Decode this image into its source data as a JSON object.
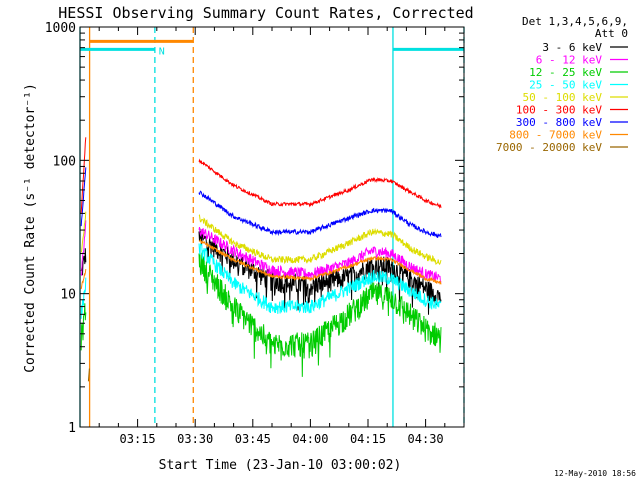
{
  "chart_data": {
    "type": "line",
    "title": "HESSI Observing Summary Count Rates, Corrected",
    "xlabel": "Start Time (23-Jan-10 03:00:02)",
    "ylabel": "Corrected Count Rate (s⁻¹ detector⁻¹)",
    "ylog": true,
    "ylim": [
      1,
      1000
    ],
    "xlim_minutes": [
      0,
      100
    ],
    "x_ticks": [
      {
        "label": "03:15",
        "minute": 15
      },
      {
        "label": "03:30",
        "minute": 30
      },
      {
        "label": "03:45",
        "minute": 45
      },
      {
        "label": "04:00",
        "minute": 60
      },
      {
        "label": "04:15",
        "minute": 75
      },
      {
        "label": "04:30",
        "minute": 90
      }
    ],
    "y_ticks": [
      {
        "label": "1",
        "value": 1
      },
      {
        "label": "10",
        "value": 10
      },
      {
        "label": "100",
        "value": 100
      },
      {
        "label": "1000",
        "value": 1000
      }
    ],
    "legend_position": "right",
    "legend_header": [
      "Det 1,3,4,5,6,9,",
      "Att 0"
    ],
    "gaps_minutes": [
      [
        2,
        31
      ]
    ],
    "series": [
      {
        "name": "3 - 6 keV",
        "color": "#000000",
        "noise": 0.18,
        "x": [
          0.3,
          1.5,
          2.0,
          31.0,
          40,
          50,
          60,
          70,
          76,
          81,
          86,
          90,
          94
        ],
        "y": [
          14,
          20,
          null,
          27,
          18,
          12.5,
          11.5,
          13.5,
          16.5,
          16,
          13,
          11,
          9.5
        ]
      },
      {
        "name": "6 - 12 keV",
        "color": "#ff00ff",
        "noise": 0.1,
        "x": [
          0.3,
          1.5,
          2.0,
          31.0,
          40,
          50,
          60,
          70,
          76,
          81,
          86,
          90,
          94
        ],
        "y": [
          13,
          33,
          null,
          30,
          21,
          15,
          14,
          17,
          21,
          20,
          16,
          14,
          13
        ]
      },
      {
        "name": "12 - 25 keV",
        "color": "#00cc00",
        "noise": 0.22,
        "x": [
          0.3,
          1.5,
          2.0,
          31.0,
          40,
          50,
          60,
          70,
          76,
          81,
          86,
          90,
          94
        ],
        "y": [
          4.5,
          8,
          null,
          18,
          8,
          4.2,
          4.2,
          7,
          10,
          9.5,
          7,
          5.5,
          4.8
        ]
      },
      {
        "name": "25 - 50 keV",
        "color": "#00ffff",
        "noise": 0.12,
        "x": [
          0.3,
          1.5,
          2.0,
          31.0,
          40,
          50,
          60,
          70,
          76,
          81,
          86,
          90,
          94
        ],
        "y": [
          7,
          12,
          null,
          22,
          12,
          8,
          8,
          11,
          13.5,
          13,
          10.5,
          9,
          8
        ]
      },
      {
        "name": "50 - 100 keV",
        "color": "#dddd00",
        "noise": 0.06,
        "x": [
          0.3,
          1.5,
          2.0,
          31.0,
          40,
          50,
          60,
          70,
          76,
          81,
          86,
          90,
          94
        ],
        "y": [
          20,
          40,
          null,
          37,
          24,
          18,
          18,
          24,
          29,
          28,
          22,
          19,
          17
        ]
      },
      {
        "name": "100 - 300 keV",
        "color": "#ff0000",
        "noise": 0.03,
        "x": [
          0.3,
          1.5,
          2.0,
          31.0,
          40,
          50,
          60,
          70,
          76,
          81,
          86,
          90,
          94
        ],
        "y": [
          40,
          150,
          null,
          100,
          65,
          47,
          47,
          60,
          72,
          70,
          58,
          50,
          45
        ]
      },
      {
        "name": "300 - 800 keV",
        "color": "#0000ff",
        "noise": 0.04,
        "x": [
          0.3,
          1.5,
          2.0,
          31.0,
          40,
          50,
          60,
          70,
          76,
          81,
          86,
          90,
          94
        ],
        "y": [
          32,
          90,
          null,
          58,
          38,
          29,
          29,
          37,
          42,
          42,
          33,
          29,
          27
        ]
      },
      {
        "name": "800 - 7000 keV",
        "color": "#ff8800",
        "noise": 0.03,
        "x": [
          0.3,
          1.5,
          2.0,
          31.0,
          40,
          50,
          60,
          70,
          76,
          81,
          86,
          90,
          94
        ],
        "y": [
          11,
          15,
          null,
          25,
          18,
          13.5,
          13,
          16,
          18.5,
          18,
          15,
          13,
          12
        ]
      },
      {
        "name": "7000 - 20000 keV",
        "color": "#996600",
        "noise": 0.0,
        "x": [
          2.2,
          2.5
        ],
        "y": [
          2.2,
          2.9
        ]
      }
    ],
    "overlays": {
      "lines": [
        {
          "label": "",
          "color": "#00e0e0",
          "style": "solid",
          "x_minute": 0.0
        },
        {
          "label": "",
          "color": "#ff8800",
          "style": "solid",
          "x_minute": 2.5
        },
        {
          "label": "",
          "color": "#00e0e0",
          "style": "dashed",
          "x_minute": 19.5
        },
        {
          "label": "",
          "color": "#ff8800",
          "style": "dashed",
          "x_minute": 29.5
        },
        {
          "label": "",
          "color": "#00e0e0",
          "style": "solid",
          "x_minute": 81.5
        },
        {
          "label": "",
          "color": "#00e0e0",
          "style": "dashed",
          "x_minute": 100.0
        }
      ],
      "bars": [
        {
          "label": "",
          "color": "#00e0e0",
          "from_minute": 0.0,
          "to_minute": 19.5,
          "value": 680
        },
        {
          "label": "",
          "color": "#ff8800",
          "from_minute": 2.5,
          "to_minute": 29.5,
          "value": 780
        },
        {
          "label": "",
          "color": "#00e0e0",
          "from_minute": 81.5,
          "to_minute": 100.0,
          "value": 680
        }
      ],
      "marker_text": {
        "label": "N",
        "color": "#00e0e0",
        "minute": 20.5
      }
    },
    "footer_timestamp": "12-May-2010 18:56"
  }
}
